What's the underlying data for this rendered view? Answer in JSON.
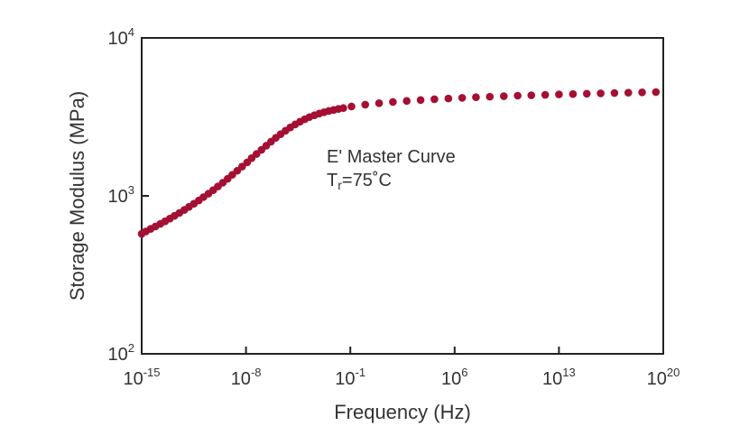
{
  "chart_data": {
    "type": "scatter",
    "xlabel": "Frequency (Hz)",
    "ylabel": "Storage Modulus (MPa)",
    "x_scale": "log",
    "y_scale": "log",
    "xlim": [
      1e-15,
      1e+20
    ],
    "ylim": [
      100,
      10000
    ],
    "x_ticks": [
      {
        "base": "10",
        "exp": "-15",
        "value": 1e-15
      },
      {
        "base": "10",
        "exp": "-8",
        "value": 1e-08
      },
      {
        "base": "10",
        "exp": "-1",
        "value": 0.1
      },
      {
        "base": "10",
        "exp": "6",
        "value": 1000000.0
      },
      {
        "base": "10",
        "exp": "13",
        "value": 10000000000000.0
      },
      {
        "base": "10",
        "exp": "20",
        "value": 1e+20
      }
    ],
    "y_ticks": [
      {
        "base": "10",
        "exp": "2",
        "value": 100
      },
      {
        "base": "10",
        "exp": "3",
        "value": 1000
      },
      {
        "base": "10",
        "exp": "4",
        "value": 10000
      }
    ],
    "marker_color": "#a50f33",
    "grid": false,
    "annotation": {
      "line1": "E' Master Curve",
      "line2_main": "T",
      "line2_sub": "r",
      "line2_rest": "=75˚C"
    },
    "series": [
      {
        "points": [
          [
            1e-15,
            575
          ],
          [
            1.9e-15,
            595
          ],
          [
            4e-15,
            618
          ],
          [
            8.4e-15,
            640
          ],
          [
            1.8e-14,
            665
          ],
          [
            3.7e-14,
            690
          ],
          [
            7.8e-14,
            718
          ],
          [
            1.6e-13,
            748
          ],
          [
            3.4e-13,
            780
          ],
          [
            7.3e-13,
            815
          ],
          [
            1.5e-12,
            852
          ],
          [
            3.2e-12,
            892
          ],
          [
            6.8e-12,
            935
          ],
          [
            1.4e-11,
            982
          ],
          [
            3e-11,
            1032
          ],
          [
            6.3e-11,
            1087
          ],
          [
            1.3e-10,
            1147
          ],
          [
            2.8e-10,
            1212
          ],
          [
            5.9e-10,
            1283
          ],
          [
            1.2e-09,
            1360
          ],
          [
            2.6e-09,
            1443
          ],
          [
            5.5e-09,
            1533
          ],
          [
            1.2e-08,
            1630
          ],
          [
            2.4e-08,
            1733
          ],
          [
            5.1e-08,
            1843
          ],
          [
            1.1e-07,
            1958
          ],
          [
            2.3e-07,
            2078
          ],
          [
            4.8e-07,
            2203
          ],
          [
            1e-06,
            2330
          ],
          [
            2.1e-06,
            2458
          ],
          [
            4.5e-06,
            2586
          ],
          [
            9.4e-06,
            2712
          ],
          [
            2e-05,
            2833
          ],
          [
            4.2e-05,
            2948
          ],
          [
            8.8e-05,
            3055
          ],
          [
            0.00018,
            3152
          ],
          [
            0.00039,
            3240
          ],
          [
            0.00082,
            3318
          ],
          [
            0.0017,
            3386
          ],
          [
            0.0036,
            3446
          ],
          [
            0.0076,
            3500
          ],
          [
            0.016,
            3550
          ],
          [
            0.034,
            3596
          ],
          [
            0.12,
            3680
          ],
          [
            1.0,
            3780
          ],
          [
            8.5,
            3860
          ],
          [
            72.0,
            3930
          ],
          [
            610.0,
            3990
          ],
          [
            5200.0,
            4045
          ],
          [
            44000.0,
            4090
          ],
          [
            380000.0,
            4135
          ],
          [
            3200000.0,
            4175
          ],
          [
            27000000.0,
            4212
          ],
          [
            230000000.0,
            4245
          ],
          [
            2000000000.0,
            4278
          ],
          [
            17000000000.0,
            4308
          ],
          [
            140000000000.0,
            4335
          ],
          [
            1200000000000.0,
            4362
          ],
          [
            10000000000000.0,
            4388
          ],
          [
            87000000000000.0,
            4412
          ],
          [
            740000000000000.0,
            4435
          ],
          [
            6300000000000000.0,
            4458
          ],
          [
            5.3e+16,
            4480
          ],
          [
            4.5e+17,
            4500
          ],
          [
            3.8e+18,
            4520
          ],
          [
            3.2e+19,
            4540
          ]
        ]
      }
    ]
  }
}
